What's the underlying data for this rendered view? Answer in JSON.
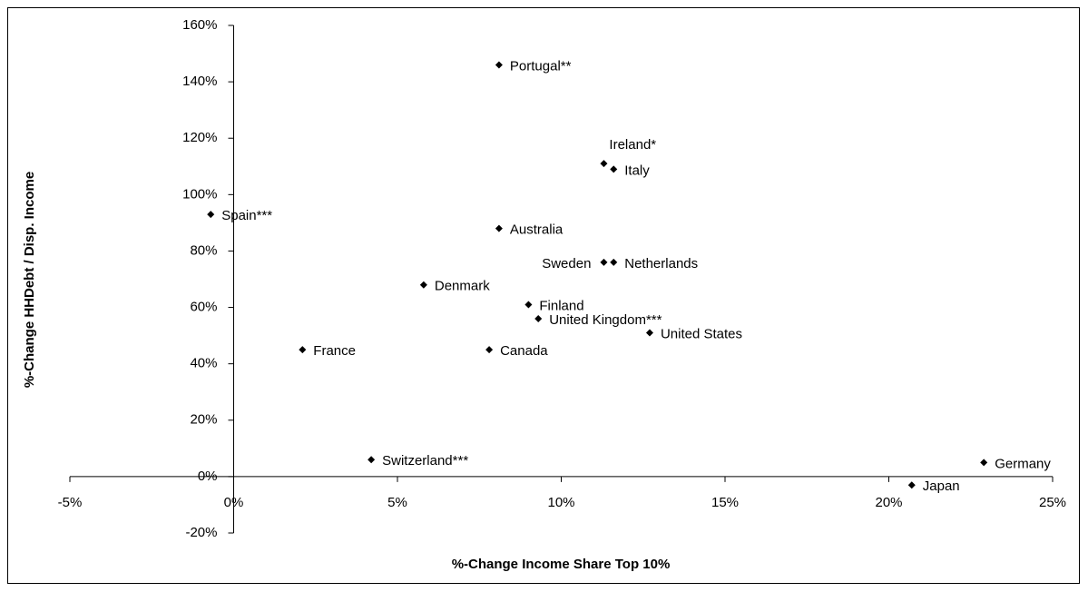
{
  "chart_data": {
    "type": "scatter",
    "x_label": "%-Change Income Share Top 10%",
    "y_label": "%-Change HHDebt / Disp. Income",
    "names": [
      "Portugal**",
      "Ireland*",
      "Italy",
      "Spain***",
      "Australia",
      "Sweden",
      "Netherlands",
      "Denmark",
      "Finland",
      "United Kingdom***",
      "United States",
      "France",
      "Canada",
      "Switzerland***",
      "Germany",
      "Japan"
    ],
    "x": [
      8.1,
      11.3,
      11.6,
      -0.7,
      8.1,
      11.3,
      11.6,
      5.8,
      9.0,
      9.3,
      12.7,
      2.1,
      7.8,
      4.2,
      22.9,
      20.7
    ],
    "y": [
      146,
      111,
      109,
      93,
      88,
      76,
      76,
      68,
      61,
      56,
      51,
      45,
      45,
      6,
      5,
      -3
    ],
    "color": "#000000",
    "xlim": [
      -5,
      25
    ],
    "xticks": [
      {
        "value": -5,
        "label": "-5%"
      },
      {
        "value": 0,
        "label": "0%"
      },
      {
        "value": 5,
        "label": "5%"
      },
      {
        "value": 10,
        "label": "10%"
      },
      {
        "value": 15,
        "label": "15%"
      },
      {
        "value": 20,
        "label": "20%"
      },
      {
        "value": 25,
        "label": "25%"
      }
    ],
    "ylim": [
      -20,
      160
    ],
    "yticks": [
      {
        "value": -20,
        "label": "-20%"
      },
      {
        "value": 0,
        "label": "0%"
      },
      {
        "value": 20,
        "label": "20%"
      },
      {
        "value": 40,
        "label": "40%"
      },
      {
        "value": 60,
        "label": "60%"
      },
      {
        "value": 80,
        "label": "80%"
      },
      {
        "value": 100,
        "label": "100%"
      },
      {
        "value": 120,
        "label": "120%"
      },
      {
        "value": 140,
        "label": "140%"
      },
      {
        "value": 160,
        "label": "160%"
      }
    ],
    "grid": false
  }
}
